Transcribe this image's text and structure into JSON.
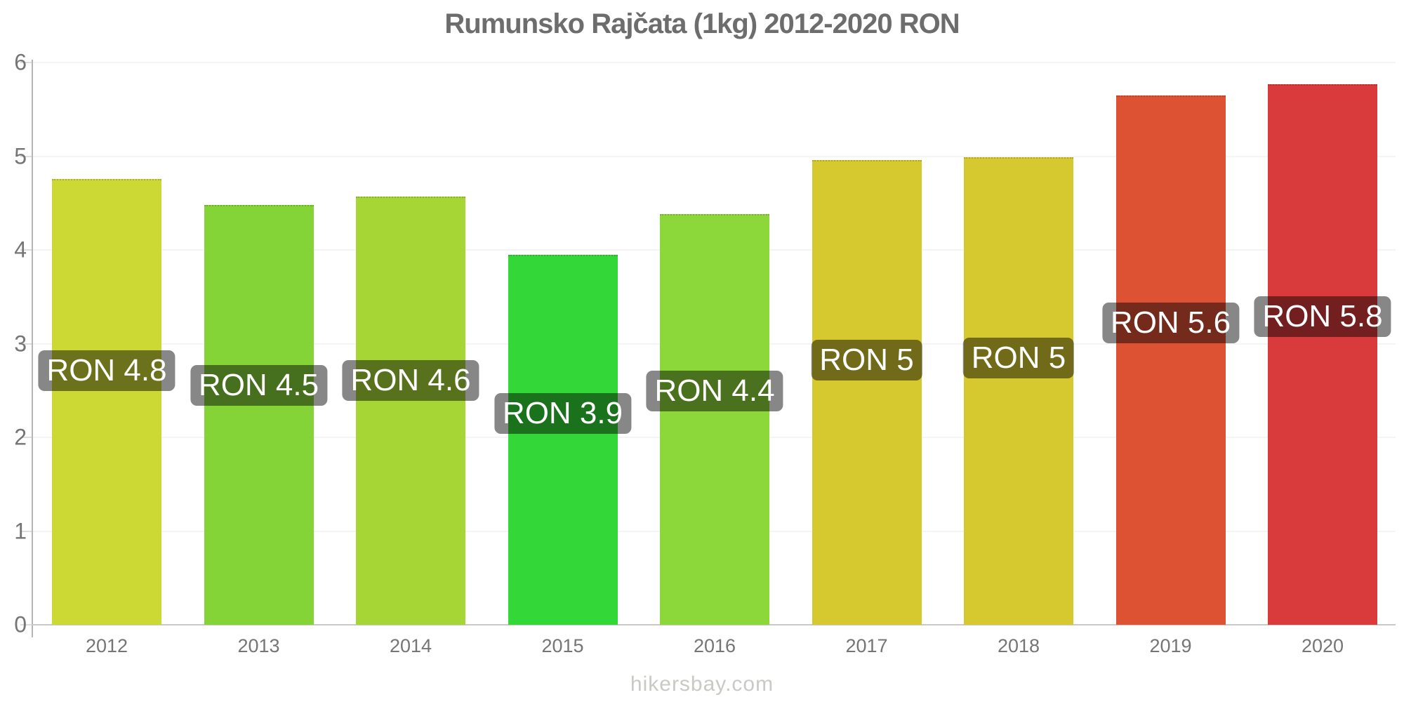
{
  "title": "Rumunsko Rajčata (1kg) 2012-2020 RON",
  "footer": "hikersbay.com",
  "chart_data": {
    "type": "bar",
    "title": "Rumunsko Rajčata (1kg) 2012-2020 RON",
    "categories": [
      "2012",
      "2013",
      "2014",
      "2015",
      "2016",
      "2017",
      "2018",
      "2019",
      "2020"
    ],
    "values": [
      4.76,
      4.48,
      4.57,
      3.95,
      4.38,
      4.96,
      4.99,
      5.65,
      5.77
    ],
    "bar_labels": [
      "RON 4.8",
      "RON 4.5",
      "RON 4.6",
      "RON 3.9",
      "RON 4.4",
      "RON 5",
      "RON 5",
      "RON 5.6",
      "RON 5.8"
    ],
    "bar_colors": [
      "#ccd834",
      "#84d438",
      "#a6d636",
      "#33d838",
      "#8cd83a",
      "#d6c92f",
      "#d6c92f",
      "#dc5233",
      "#d93b3d"
    ],
    "xlabel": "",
    "ylabel": "",
    "ylim": [
      0,
      6
    ],
    "yticks": [
      "0",
      "1",
      "2",
      "3",
      "4",
      "5",
      "6"
    ],
    "grid": true,
    "legend": "none",
    "currency": "RON",
    "label_text_color": "#ffffff",
    "label_overlay_color": "rgba(0,0,0,0.47)",
    "axis_text_color": "#757575",
    "title_color": "#6d6d6d",
    "watermark_color": "#c9c9c5"
  }
}
